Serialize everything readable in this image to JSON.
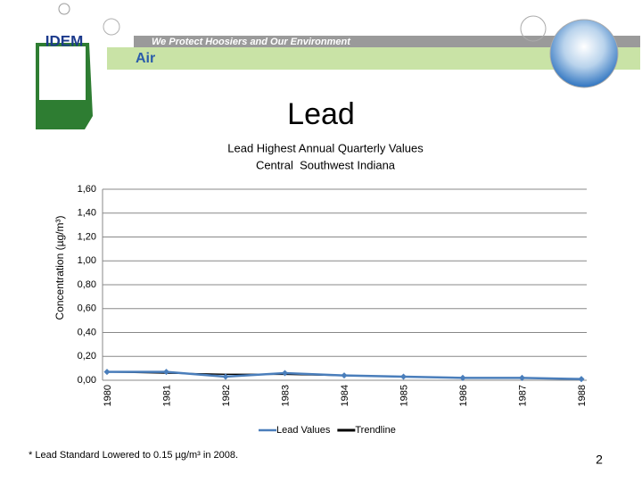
{
  "header": {
    "logo": "IDEM",
    "slogan": "We Protect Hoosiers and Our Environment",
    "section": "Air"
  },
  "slide_title": "Lead",
  "chart_data": {
    "type": "line",
    "title": "Lead Highest Annual Quarterly Values",
    "subtitle": "Central  Southwest Indiana",
    "y_label": "Concentration (µg/m³)",
    "categories": [
      "1980",
      "1981",
      "1982",
      "1983",
      "1984",
      "1985",
      "1986",
      "1987",
      "1988"
    ],
    "series": [
      {
        "name": "Lead Values",
        "color": "#4a7ebb",
        "values": [
          0.07,
          0.07,
          0.03,
          0.06,
          0.04,
          0.03,
          0.02,
          0.02,
          0.01
        ]
      },
      {
        "name": "Trendline",
        "color": "#000000",
        "values": [
          0.07,
          0.06,
          0.05,
          0.05,
          0.04,
          0.03,
          0.02,
          0.02,
          0.01
        ]
      }
    ],
    "ylim": [
      0,
      1.6
    ],
    "yticks": [
      {
        "value": 0,
        "label": "0,00"
      },
      {
        "value": 0.2,
        "label": "0,20"
      },
      {
        "value": 0.4,
        "label": "0,40"
      },
      {
        "value": 0.6,
        "label": "0,60"
      },
      {
        "value": 0.8,
        "label": "0,80"
      },
      {
        "value": 1.0,
        "label": "1,00"
      },
      {
        "value": 1.2,
        "label": "1,20"
      },
      {
        "value": 1.4,
        "label": "1,40"
      },
      {
        "value": 1.6,
        "label": "1,60"
      }
    ],
    "grid": true,
    "legend": "bottom"
  },
  "footnote": "* Lead Standard Lowered to 0.15 µg/m³ in 2008.",
  "page_number": "2"
}
